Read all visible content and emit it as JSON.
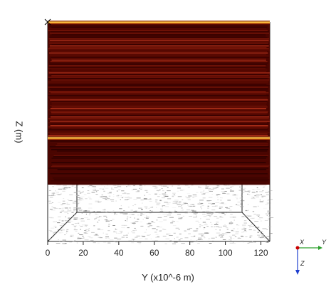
{
  "plot": {
    "z_axis_label": "Z (m)",
    "y_axis_label": "Y (x10^-6 m)",
    "y_ticks": [
      "0",
      "20",
      "40",
      "60",
      "80",
      "100",
      "120"
    ],
    "y_tick_values": [
      0,
      20,
      40,
      60,
      80,
      100,
      120
    ],
    "y_range": [
      0,
      125
    ],
    "colormap": {
      "dark": "#3a0000",
      "mid": "#8a1a0a",
      "bright": "#ffc33a"
    }
  },
  "triad": {
    "x_label": "X",
    "y_label": "Y",
    "z_label": "Z",
    "x_color": "#cc0000",
    "y_color": "#2ea02e",
    "z_color": "#1f3fcf"
  }
}
